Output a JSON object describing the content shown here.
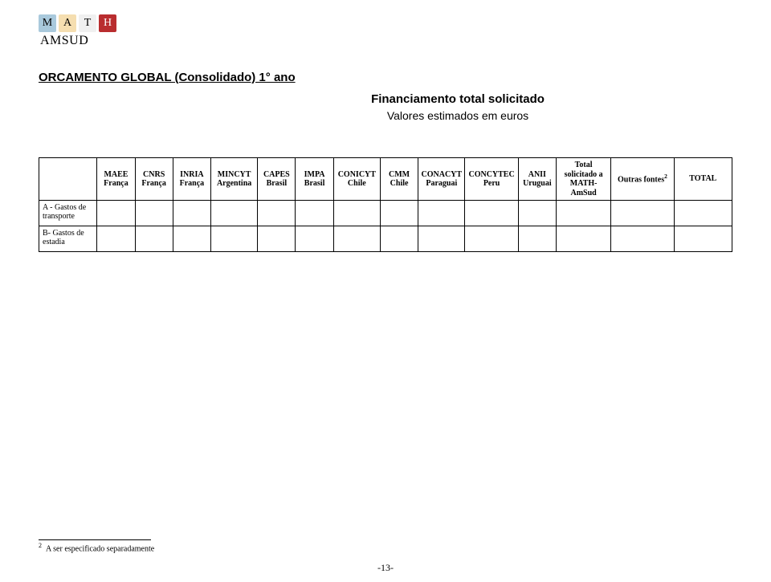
{
  "logo": {
    "letters": [
      "M",
      "A",
      "T",
      "H"
    ],
    "sub": "AMSUD",
    "box_colors": [
      "#a9c9dc",
      "#f5deb0",
      "#f0f0f0",
      "#b92d2f"
    ]
  },
  "title": "ORCAMENTO GLOBAL (Consolidado)  1° ano",
  "subtitle1": "Financiamento total solicitado",
  "subtitle2": "Valores estimados em euros",
  "table": {
    "columns": [
      {
        "line1": "MAEE",
        "line2": "França"
      },
      {
        "line1": "CNRS",
        "line2": "França"
      },
      {
        "line1": "INRIA",
        "line2": "França"
      },
      {
        "line1": "MINCYT",
        "line2": "Argentina"
      },
      {
        "line1": "CAPES",
        "line2": "Brasil"
      },
      {
        "line1": "IMPA",
        "line2": "Brasil"
      },
      {
        "line1": "CONICYT",
        "line2": "Chile"
      },
      {
        "line1": "CMM",
        "line2": "Chile"
      },
      {
        "line1": "CONACYT",
        "line2": "Paraguai"
      },
      {
        "line1": "CONCYTEC",
        "line2": "Peru"
      },
      {
        "line1": "ANII",
        "line2": "Uruguai"
      },
      {
        "line1": "Total",
        "line2": "solicitado a",
        "line3": "MATH-",
        "line4": "AmSud"
      },
      {
        "line1": "Outras fontes",
        "sup": "2"
      },
      {
        "line1": "TOTAL"
      }
    ],
    "rows": [
      {
        "label": "A - Gastos de transporte"
      },
      {
        "label": "B- Gastos de estadia"
      }
    ]
  },
  "footnote": {
    "marker": "2",
    "text": "A ser especificado separadamente"
  },
  "pagenum": "-13-"
}
